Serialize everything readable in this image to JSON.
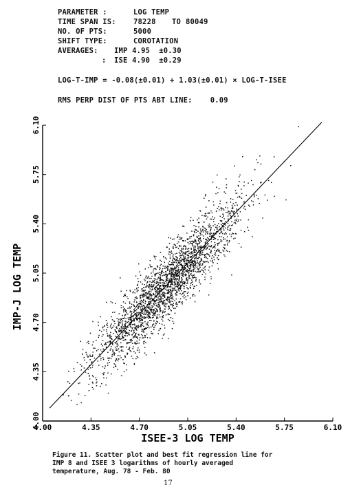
{
  "header": {
    "parameter_label": "PARAMETER :",
    "parameter_value": "LOG TEMP",
    "timespan_label": "TIME SPAN IS:",
    "timespan_start": "78228",
    "timespan_to": "TO",
    "timespan_end": "80049",
    "npts_label": "NO. OF PTS:",
    "npts_value": "5000",
    "shift_label": "SHIFT TYPE:",
    "shift_value": "COROTATION",
    "averages_label": "AVERAGES:",
    "avg_imp": "IMP 4.95  ±0.30",
    "avg_colon": ":",
    "avg_ise": "ISE 4.90  ±0.29",
    "regression": "LOG-T-IMP = -0.08(±0.01) + 1.03(±0.01) × LOG-T-ISEE",
    "rms": "RMS PERP DIST OF PTS ABT LINE:    0.09"
  },
  "chart_data": {
    "type": "scatter",
    "title": "",
    "xlabel": "ISEE-3   LOG TEMP",
    "ylabel": "IMP-J   LOG TEMP",
    "xlim": [
      4.0,
      6.1
    ],
    "ylim": [
      4.0,
      6.1
    ],
    "xticks": [
      "4.00",
      "4.35",
      "4.70",
      "5.05",
      "5.40",
      "5.75",
      "6.10"
    ],
    "yticks": [
      "4.00",
      "4.35",
      "4.70",
      "5.05",
      "5.40",
      "5.75",
      "6.10"
    ],
    "n_points": 5000,
    "fit_line": {
      "intercept": -0.08,
      "slope": 1.03,
      "x_range": [
        4.05,
        6.02
      ]
    },
    "rms_perp_dist": 0.09,
    "point_cloud": {
      "x_mean": 4.9,
      "x_std": 0.29,
      "y_mean": 4.95,
      "y_std": 0.3
    },
    "grid": false
  },
  "caption": {
    "line1": "Figure 11.  Scatter plot and best fit regression line for",
    "line2": "IMP 8 and ISEE 3 logarithms of hourly averaged",
    "line3": "temperature, Aug. 78 - Feb. 80"
  },
  "page_number": "17"
}
